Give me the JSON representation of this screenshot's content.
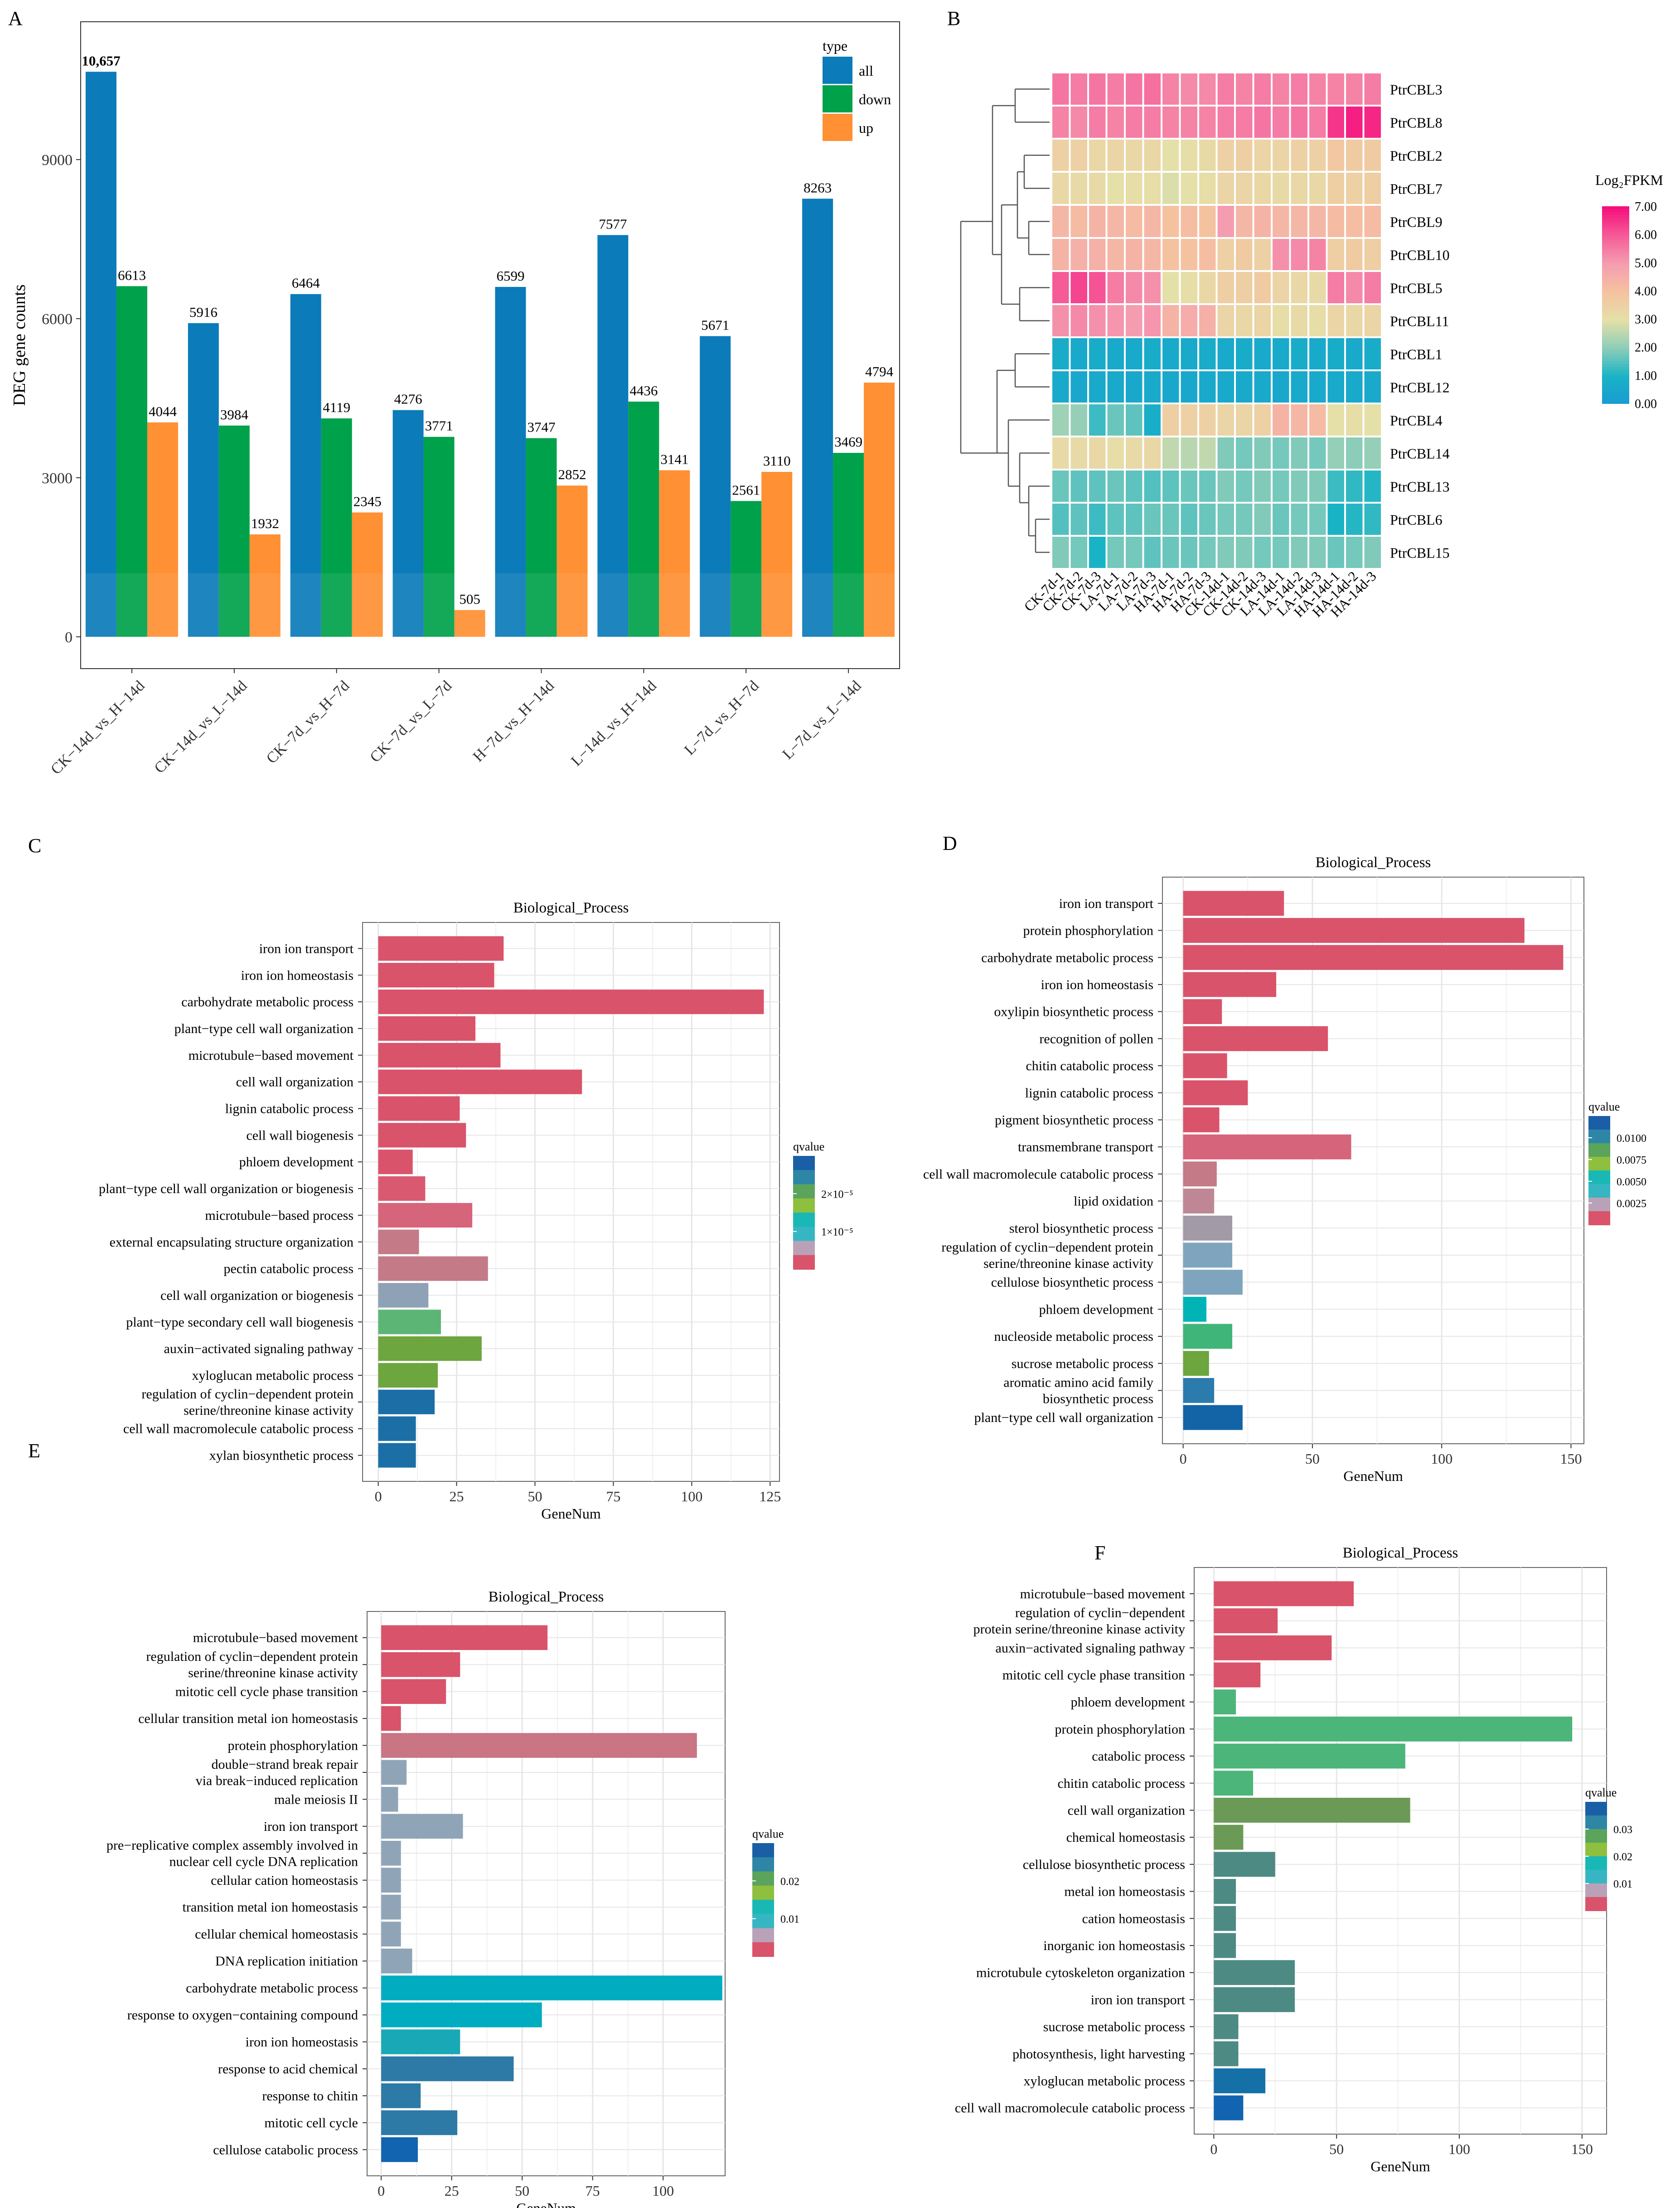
{
  "panels": {
    "A": {
      "letter": "A",
      "legend_title": "type",
      "chart_data": {
        "type": "bar",
        "ylabel": "DEG gene counts",
        "ylim": [
          -600,
          11600
        ],
        "yticks": [
          0,
          3000,
          6000,
          9000
        ],
        "categories": [
          "CK−14d_vs_H−14d",
          "CK−14d_vs_L−14d",
          "CK−7d_vs_H−7d",
          "CK−7d_vs_L−7d",
          "H−7d_vs_H−14d",
          "L−14d_vs_H−14d",
          "L−7d_vs_H−7d",
          "L−7d_vs_L−14d"
        ],
        "series": [
          {
            "name": "all",
            "color": "#0b7bb9",
            "values": [
              10657,
              5916,
              6464,
              4276,
              6599,
              7577,
              5671,
              8263
            ],
            "labels": [
              "10,657",
              "5916",
              "6464",
              "4276",
              "6599",
              "7577",
              "5671",
              "8263"
            ]
          },
          {
            "name": "down",
            "color": "#00a14b",
            "values": [
              6613,
              3984,
              4119,
              3771,
              3747,
              4436,
              2561,
              3469
            ],
            "labels": [
              "6613",
              "3984",
              "4119",
              "3771",
              "3747",
              "4436",
              "2561",
              "3469"
            ]
          },
          {
            "name": "up",
            "color": "#ff9033",
            "values": [
              4044,
              1932,
              2345,
              505,
              2852,
              3141,
              3110,
              4794
            ],
            "labels": [
              "4044",
              "1932",
              "2345",
              "505",
              "2852",
              "3141",
              "3110",
              "4794"
            ]
          }
        ]
      }
    },
    "B": {
      "letter": "B",
      "legend_title": "Log₂FPKM",
      "chart_data": {
        "type": "heatmap",
        "columns": [
          "CK-7d-1",
          "CK-7d-2",
          "CK-7d-3",
          "LA-7d-1",
          "LA-7d-2",
          "LA-7d-3",
          "HA-7d-1",
          "HA-7d-2",
          "HA-7d-3",
          "CK-14d-1",
          "CK-14d-2",
          "CK-14d-3",
          "LA-14d-1",
          "LA-14d-2",
          "LA-14d-3",
          "HA-14d-1",
          "HA-14d-2",
          "HA-14d-3"
        ],
        "rows": [
          "PtrCBL3",
          "PtrCBL8",
          "PtrCBL2",
          "PtrCBL7",
          "PtrCBL9",
          "PtrCBL10",
          "PtrCBL5",
          "PtrCBL11",
          "PtrCBL1",
          "PtrCBL12",
          "PtrCBL4",
          "PtrCBL14",
          "PtrCBL13",
          "PtrCBL6",
          "PtrCBL15"
        ],
        "values": [
          [
            5.6,
            5.5,
            5.6,
            5.5,
            5.6,
            5.7,
            5.4,
            5.3,
            5.3,
            5.5,
            5.4,
            5.5,
            5.4,
            5.5,
            5.4,
            5.4,
            5.4,
            5.5
          ],
          [
            5.4,
            5.3,
            5.5,
            5.4,
            5.5,
            5.5,
            5.4,
            5.4,
            5.4,
            5.5,
            5.5,
            5.6,
            5.5,
            5.6,
            5.5,
            6.5,
            6.8,
            6.7
          ],
          [
            3.5,
            3.5,
            3.3,
            3.4,
            3.3,
            3.3,
            3.0,
            3.1,
            3.2,
            3.5,
            3.6,
            3.4,
            3.4,
            3.5,
            3.5,
            3.8,
            3.7,
            3.7
          ],
          [
            3.3,
            3.2,
            3.2,
            3.0,
            3.1,
            3.1,
            2.9,
            3.0,
            3.1,
            3.4,
            3.4,
            3.3,
            3.2,
            3.3,
            3.3,
            3.6,
            3.5,
            3.6
          ],
          [
            4.3,
            4.2,
            4.4,
            4.3,
            4.2,
            4.3,
            4.0,
            4.1,
            4.0,
            5.0,
            4.3,
            4.4,
            4.3,
            4.3,
            4.3,
            4.2,
            4.1,
            4.2
          ],
          [
            4.4,
            4.5,
            4.5,
            4.3,
            4.4,
            4.3,
            4.0,
            4.0,
            4.1,
            3.5,
            3.7,
            3.5,
            5.2,
            5.3,
            5.4,
            3.6,
            3.7,
            3.6
          ],
          [
            6.0,
            6.3,
            6.1,
            5.5,
            5.3,
            5.2,
            3.0,
            3.1,
            3.3,
            3.6,
            3.6,
            3.7,
            3.4,
            3.3,
            3.2,
            5.5,
            5.3,
            5.5
          ],
          [
            5.2,
            5.3,
            5.2,
            5.1,
            5.0,
            5.1,
            4.4,
            4.6,
            4.5,
            3.4,
            3.3,
            3.4,
            3.1,
            3.2,
            3.1,
            3.4,
            3.3,
            3.4
          ],
          [
            0.7,
            0.6,
            0.7,
            0.6,
            0.6,
            0.7,
            0.6,
            0.6,
            0.7,
            0.6,
            0.7,
            0.6,
            0.6,
            0.7,
            0.6,
            0.7,
            0.6,
            0.7
          ],
          [
            0.6,
            0.5,
            0.6,
            0.6,
            0.5,
            0.6,
            0.5,
            0.5,
            0.6,
            0.6,
            0.6,
            0.6,
            0.5,
            0.6,
            0.6,
            0.6,
            0.6,
            0.6
          ],
          [
            2.2,
            2.1,
            1.3,
            1.7,
            1.6,
            0.8,
            3.6,
            3.5,
            3.5,
            3.4,
            3.4,
            3.5,
            4.4,
            4.3,
            4.2,
            3.0,
            3.1,
            3.0
          ],
          [
            3.2,
            3.2,
            3.3,
            3.1,
            3.2,
            3.3,
            2.6,
            2.5,
            2.6,
            1.9,
            1.8,
            1.9,
            1.8,
            1.9,
            1.8,
            2.1,
            2.0,
            2.1
          ],
          [
            1.7,
            1.6,
            1.6,
            1.7,
            1.6,
            1.5,
            1.6,
            1.7,
            1.7,
            1.9,
            1.8,
            1.9,
            1.8,
            1.9,
            1.9,
            1.3,
            1.2,
            1.1
          ],
          [
            1.5,
            1.6,
            1.3,
            1.6,
            1.6,
            1.7,
            1.7,
            1.6,
            1.7,
            1.8,
            1.8,
            1.9,
            1.7,
            1.8,
            1.8,
            1.0,
            1.1,
            1.2
          ],
          [
            1.9,
            1.8,
            1.0,
            1.8,
            1.8,
            1.6,
            1.7,
            1.7,
            1.8,
            1.9,
            1.9,
            1.8,
            1.8,
            1.9,
            1.9,
            1.7,
            1.8,
            1.9
          ]
        ],
        "legend_min": 0,
        "legend_max": 7,
        "legend_ticks": [
          "0.00",
          "1.00",
          "2.00",
          "3.00",
          "4.00",
          "5.00",
          "6.00",
          "7.00"
        ]
      }
    },
    "C": {
      "letter": "C",
      "legend_title": "qvalue",
      "chart_data": {
        "type": "bar",
        "orientation": "horizontal",
        "title": "Biological_Process",
        "xlabel": "GeneNum",
        "xlim": [
          -5,
          128
        ],
        "xticks": [
          0,
          25,
          50,
          75,
          100,
          125
        ],
        "categories": [
          [
            "iron ion transport"
          ],
          [
            "iron ion homeostasis"
          ],
          [
            "carbohydrate metabolic process"
          ],
          [
            "plant−type cell wall organization"
          ],
          [
            "microtubule−based movement"
          ],
          [
            "cell wall organization"
          ],
          [
            "lignin catabolic process"
          ],
          [
            "cell wall biogenesis"
          ],
          [
            "phloem development"
          ],
          [
            "plant−type cell wall organization or biogenesis"
          ],
          [
            "microtubule−based process"
          ],
          [
            "external encapsulating structure organization"
          ],
          [
            "pectin catabolic process"
          ],
          [
            "cell wall organization or biogenesis"
          ],
          [
            "plant−type secondary cell wall biogenesis"
          ],
          [
            "auxin−activated signaling pathway"
          ],
          [
            "xyloglucan metabolic process"
          ],
          [
            "regulation of cyclin−dependent protein",
            "serine/threonine kinase activity"
          ],
          [
            "cell wall macromolecule catabolic process"
          ],
          [
            "xylan biosynthetic process"
          ]
        ],
        "values": [
          40,
          37,
          123,
          31,
          39,
          65,
          26,
          28,
          11,
          15,
          30,
          13,
          35,
          16,
          20,
          33,
          19,
          18,
          12,
          12
        ],
        "colors": [
          "#d9536b",
          "#d9536b",
          "#d9536b",
          "#d9536b",
          "#d9536b",
          "#d9536b",
          "#d9536b",
          "#d9536b",
          "#d9536b",
          "#d95a70",
          "#d6647a",
          "#c47a87",
          "#c47a87",
          "#8fa1b5",
          "#5cb575",
          "#6da53e",
          "#6da53e",
          "#1b6fa6",
          "#1b6fa6",
          "#1b6fa6"
        ],
        "legend_ticks": [
          "2×10⁻⁵",
          "1×10⁻⁵"
        ]
      }
    },
    "D": {
      "letter": "D",
      "legend_title": "qvalue",
      "chart_data": {
        "type": "bar",
        "orientation": "horizontal",
        "title": "Biological_Process",
        "xlabel": "GeneNum",
        "xlim": [
          -8,
          155
        ],
        "xticks": [
          0,
          50,
          100,
          150
        ],
        "categories": [
          [
            "iron ion transport"
          ],
          [
            "protein phosphorylation"
          ],
          [
            "carbohydrate metabolic process"
          ],
          [
            "iron ion homeostasis"
          ],
          [
            "oxylipin biosynthetic process"
          ],
          [
            "recognition of pollen"
          ],
          [
            "chitin catabolic process"
          ],
          [
            "lignin catabolic process"
          ],
          [
            "pigment biosynthetic process"
          ],
          [
            "transmembrane transport"
          ],
          [
            "cell wall macromolecule catabolic process"
          ],
          [
            "lipid oxidation"
          ],
          [
            "sterol biosynthetic process"
          ],
          [
            "regulation of cyclin−dependent protein",
            "serine/threonine kinase activity"
          ],
          [
            "cellulose biosynthetic process"
          ],
          [
            "phloem development"
          ],
          [
            "nucleoside metabolic process"
          ],
          [
            "sucrose metabolic process"
          ],
          [
            "aromatic amino acid family",
            "biosynthetic process"
          ],
          [
            "plant−type cell wall organization"
          ]
        ],
        "values": [
          39,
          132,
          147,
          36,
          15,
          56,
          17,
          25,
          14,
          65,
          13,
          12,
          19,
          19,
          23,
          9,
          19,
          10,
          12,
          23
        ],
        "colors": [
          "#d9536b",
          "#d9536b",
          "#d9536b",
          "#d9536b",
          "#d9536b",
          "#d9536b",
          "#d9536b",
          "#d9536b",
          "#d9536b",
          "#d6647a",
          "#c47a87",
          "#bf8796",
          "#a39aa8",
          "#7ea5bd",
          "#7ea5bd",
          "#00b3b5",
          "#3fb579",
          "#6da53e",
          "#2c7bad",
          "#1264a6"
        ],
        "legend_ticks": [
          "0.0100",
          "0.0075",
          "0.0050",
          "0.0025"
        ]
      }
    },
    "E": {
      "letter": "E",
      "legend_title": "qvalue",
      "chart_data": {
        "type": "bar",
        "orientation": "horizontal",
        "title": "Biological_Process",
        "xlabel": "GeneNum",
        "xlim": [
          -5,
          122
        ],
        "xticks": [
          0,
          25,
          50,
          75,
          100
        ],
        "categories": [
          [
            "microtubule−based movement"
          ],
          [
            "regulation of cyclin−dependent protein",
            "serine/threonine kinase activity"
          ],
          [
            "mitotic cell cycle phase transition"
          ],
          [
            "cellular transition metal ion homeostasis"
          ],
          [
            "protein phosphorylation"
          ],
          [
            "double−strand break repair",
            "via break−induced replication"
          ],
          [
            "male meiosis II"
          ],
          [
            "iron ion transport"
          ],
          [
            "pre−replicative complex assembly involved in",
            "nuclear cell cycle DNA replication"
          ],
          [
            "cellular cation homeostasis"
          ],
          [
            "transition metal ion homeostasis"
          ],
          [
            "cellular chemical homeostasis"
          ],
          [
            "DNA replication initiation"
          ],
          [
            "carbohydrate metabolic process"
          ],
          [
            "response to oxygen−containing compound"
          ],
          [
            "iron ion homeostasis"
          ],
          [
            "response to acid chemical"
          ],
          [
            "response to chitin"
          ],
          [
            "mitotic cell cycle"
          ],
          [
            "cellulose catabolic process"
          ]
        ],
        "values": [
          59,
          28,
          23,
          7,
          112,
          9,
          6,
          29,
          7,
          7,
          7,
          7,
          11,
          121,
          57,
          28,
          47,
          14,
          27,
          13
        ],
        "colors": [
          "#d9536b",
          "#d9536b",
          "#d9536b",
          "#d9536b",
          "#c97584",
          "#8fa5b7",
          "#8fa5b7",
          "#8fa5b7",
          "#8fa5b7",
          "#8fa5b7",
          "#8fa5b7",
          "#8fa5b7",
          "#8fa5b7",
          "#00acc0",
          "#00acc0",
          "#19a9b6",
          "#2d7aa6",
          "#2d7aa6",
          "#2d7aa6",
          "#1264b0"
        ],
        "legend_ticks": [
          "0.02",
          "0.01"
        ]
      }
    },
    "F": {
      "letter": "F",
      "legend_title": "qvalue",
      "chart_data": {
        "type": "bar",
        "orientation": "horizontal",
        "title": "Biological_Process",
        "xlabel": "GeneNum",
        "xlim": [
          -8,
          160
        ],
        "xticks": [
          0,
          50,
          100,
          150
        ],
        "categories": [
          [
            "microtubule−based movement"
          ],
          [
            "regulation of cyclin−dependent",
            "protein serine/threonine kinase activity"
          ],
          [
            "auxin−activated signaling pathway"
          ],
          [
            "mitotic cell cycle phase transition"
          ],
          [
            "phloem development"
          ],
          [
            "protein phosphorylation"
          ],
          [
            "catabolic process"
          ],
          [
            "chitin catabolic process"
          ],
          [
            "cell wall organization"
          ],
          [
            "chemical homeostasis"
          ],
          [
            "cellulose biosynthetic process"
          ],
          [
            "metal ion homeostasis"
          ],
          [
            "cation homeostasis"
          ],
          [
            "inorganic ion homeostasis"
          ],
          [
            "microtubule cytoskeleton organization"
          ],
          [
            "iron ion transport"
          ],
          [
            "sucrose metabolic process"
          ],
          [
            "photosynthesis, light harvesting"
          ],
          [
            "xyloglucan metabolic process"
          ],
          [
            "cell wall macromolecule catabolic process"
          ]
        ],
        "values": [
          57,
          26,
          48,
          19,
          9,
          146,
          78,
          16,
          80,
          12,
          25,
          9,
          9,
          9,
          33,
          33,
          10,
          10,
          21,
          12
        ],
        "colors": [
          "#d9536b",
          "#d9536b",
          "#d9536b",
          "#d9536b",
          "#4cb57a",
          "#4cb57a",
          "#4cb57a",
          "#4cb57a",
          "#6a9a55",
          "#6a9a55",
          "#4d8a83",
          "#4d8a83",
          "#4d8a83",
          "#4d8a83",
          "#4d8a83",
          "#4d8a83",
          "#4d8a83",
          "#4d8a83",
          "#1670a8",
          "#1264b0"
        ],
        "legend_ticks": [
          "0.03",
          "0.02",
          "0.01"
        ]
      }
    }
  }
}
